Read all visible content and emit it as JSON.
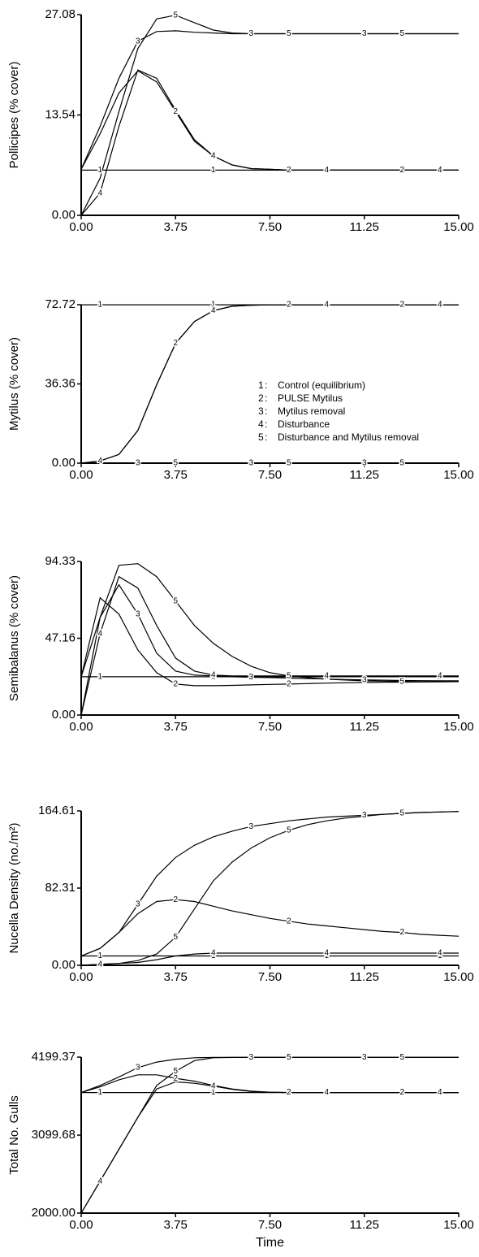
{
  "chart_data": [
    {
      "type": "line",
      "y_label": "Pollicipes (% cover)",
      "x": [
        0,
        0.75,
        1.5,
        2.25,
        3,
        3.75,
        4.5,
        5.25,
        6,
        6.75,
        7.5,
        8.25,
        9,
        9.75,
        10.5,
        11.25,
        12,
        12.75,
        13.5,
        14.25,
        15
      ],
      "xlim": [
        0,
        15
      ],
      "xticks": [
        {
          "value": 0,
          "label": "0.00"
        },
        {
          "value": 3.75,
          "label": "3.75"
        },
        {
          "value": 7.5,
          "label": "7.50"
        },
        {
          "value": 11.25,
          "label": "11.25"
        },
        {
          "value": 15,
          "label": "15.00"
        }
      ],
      "ylim": [
        0,
        27.08
      ],
      "yticks": [
        {
          "value": 0,
          "label": "0.00"
        },
        {
          "value": 13.54,
          "label": "13.54"
        },
        {
          "value": 27.08,
          "label": "27.08"
        }
      ],
      "series": [
        {
          "key": "1",
          "color": "#000000",
          "values": [
            6.1,
            6.1,
            6.1,
            6.1,
            6.1,
            6.1,
            6.1,
            6.1,
            6.1,
            6.1,
            6.1,
            6.1,
            6.1,
            6.1,
            6.1,
            6.1,
            6.1,
            6.1,
            6.1,
            6.1,
            6.1
          ]
        },
        {
          "key": "2",
          "color": "#000000",
          "values": [
            6.2,
            11,
            16.5,
            19.5,
            18,
            14,
            10,
            8,
            6.8,
            6.3,
            6.2,
            6.1,
            6.1,
            6.1,
            6.1,
            6.1,
            6.1,
            6.1,
            6.1,
            6.1,
            6.1
          ]
        },
        {
          "key": "3",
          "color": "#000000",
          "values": [
            6.2,
            12,
            18.5,
            23.5,
            24.8,
            24.9,
            24.7,
            24.6,
            24.5,
            24.5,
            24.5,
            24.5,
            24.5,
            24.5,
            24.5,
            24.5,
            24.5,
            24.5,
            24.5,
            24.5,
            24.5
          ]
        },
        {
          "key": "4",
          "color": "#000000",
          "values": [
            0,
            3,
            12,
            19.6,
            18.5,
            14.2,
            10.2,
            8,
            6.8,
            6.3,
            6.2,
            6.1,
            6.1,
            6.1,
            6.1,
            6.1,
            6.1,
            6.1,
            6.1,
            6.1,
            6.1
          ]
        },
        {
          "key": "5",
          "color": "#000000",
          "values": [
            0,
            5,
            14,
            22.5,
            26.5,
            27,
            26,
            25,
            24.6,
            24.5,
            24.5,
            24.5,
            24.5,
            24.5,
            24.5,
            24.5,
            24.5,
            24.5,
            24.5,
            24.5,
            24.5
          ]
        }
      ]
    },
    {
      "type": "line",
      "y_label": "Mytilus (% cover)",
      "x": [
        0,
        0.75,
        1.5,
        2.25,
        3,
        3.75,
        4.5,
        5.25,
        6,
        6.75,
        7.5,
        8.25,
        9,
        9.75,
        10.5,
        11.25,
        12,
        12.75,
        13.5,
        14.25,
        15
      ],
      "xlim": [
        0,
        15
      ],
      "xticks": [
        {
          "value": 0,
          "label": "0.00"
        },
        {
          "value": 3.75,
          "label": "3.75"
        },
        {
          "value": 7.5,
          "label": "7.50"
        },
        {
          "value": 11.25,
          "label": "11.25"
        },
        {
          "value": 15,
          "label": "15.00"
        }
      ],
      "ylim": [
        0,
        72.72
      ],
      "yticks": [
        {
          "value": 0,
          "label": "0.00"
        },
        {
          "value": 36.36,
          "label": "36.36"
        },
        {
          "value": 72.72,
          "label": "72.72"
        }
      ],
      "legend": [
        {
          "key": "1",
          "name": "Control (equilibrium)"
        },
        {
          "key": "2",
          "name": "PULSE Mytilus"
        },
        {
          "key": "3",
          "name": "Mytilus removal"
        },
        {
          "key": "4",
          "name": "Disturbance"
        },
        {
          "key": "5",
          "name": "Disturbance and Mytilus removal"
        }
      ],
      "series": [
        {
          "key": "1",
          "color": "#000000",
          "values": [
            72.7,
            72.7,
            72.7,
            72.7,
            72.7,
            72.7,
            72.7,
            72.7,
            72.7,
            72.7,
            72.7,
            72.7,
            72.7,
            72.7,
            72.7,
            72.7,
            72.7,
            72.7,
            72.7,
            72.7,
            72.7
          ]
        },
        {
          "key": "2",
          "color": "#000000",
          "values": [
            0,
            1,
            4,
            15,
            36,
            55,
            65,
            70,
            72,
            72.5,
            72.7,
            72.7,
            72.7,
            72.7,
            72.7,
            72.7,
            72.7,
            72.7,
            72.7,
            72.7,
            72.7
          ]
        },
        {
          "key": "3",
          "color": "#000000",
          "values": [
            0,
            0,
            0,
            0,
            0,
            0,
            0,
            0,
            0,
            0,
            0,
            0,
            0,
            0,
            0,
            0,
            0,
            0,
            0,
            0,
            0
          ]
        },
        {
          "key": "4",
          "color": "#000000",
          "values": [
            0,
            1,
            4,
            15,
            36,
            55,
            65,
            70,
            72,
            72.5,
            72.7,
            72.7,
            72.7,
            72.7,
            72.7,
            72.7,
            72.7,
            72.7,
            72.7,
            72.7,
            72.7
          ]
        },
        {
          "key": "5",
          "color": "#000000",
          "values": [
            0,
            0,
            0,
            0,
            0,
            0,
            0,
            0,
            0,
            0,
            0,
            0,
            0,
            0,
            0,
            0,
            0,
            0,
            0,
            0,
            0
          ]
        }
      ]
    },
    {
      "type": "line",
      "y_label": "Semibalanus (% cover)",
      "x": [
        0,
        0.75,
        1.5,
        2.25,
        3,
        3.75,
        4.5,
        5.25,
        6,
        6.75,
        7.5,
        8.25,
        9,
        9.75,
        10.5,
        11.25,
        12,
        12.75,
        13.5,
        14.25,
        15
      ],
      "xlim": [
        0,
        15
      ],
      "xticks": [
        {
          "value": 0,
          "label": "0.00"
        },
        {
          "value": 3.75,
          "label": "3.75"
        },
        {
          "value": 7.5,
          "label": "7.50"
        },
        {
          "value": 11.25,
          "label": "11.25"
        },
        {
          "value": 15,
          "label": "15.00"
        }
      ],
      "ylim": [
        0,
        94.33
      ],
      "yticks": [
        {
          "value": 0,
          "label": "0.00"
        },
        {
          "value": 47.16,
          "label": "47.16"
        },
        {
          "value": 94.33,
          "label": "94.33"
        }
      ],
      "series": [
        {
          "key": "1",
          "color": "#000000",
          "values": [
            23.5,
            23.5,
            23.5,
            23.5,
            23.5,
            23.5,
            23.5,
            23.5,
            23.5,
            23.5,
            23.5,
            23.5,
            23.5,
            23.5,
            23.5,
            23.5,
            23.5,
            23.5,
            23.5,
            23.5,
            23.5
          ]
        },
        {
          "key": "2",
          "color": "#000000",
          "values": [
            23.5,
            72,
            62,
            40,
            26,
            19,
            18,
            18,
            18.2,
            18.5,
            18.8,
            19,
            19.3,
            19.6,
            19.8,
            20,
            20.1,
            20.2,
            20.3,
            20.4,
            20.5
          ]
        },
        {
          "key": "3",
          "color": "#000000",
          "values": [
            23.5,
            60,
            80,
            62,
            38,
            27,
            24.5,
            24,
            23.5,
            23.2,
            23,
            22.7,
            22.4,
            22.1,
            21.8,
            21.6,
            21.4,
            21.2,
            21.1,
            21,
            21
          ]
        },
        {
          "key": "4",
          "color": "#000000",
          "values": [
            0,
            50,
            85,
            78,
            55,
            35,
            27,
            24.5,
            24,
            24,
            24,
            24,
            24,
            24,
            24,
            24,
            24,
            24,
            24,
            24,
            24
          ]
        },
        {
          "key": "5",
          "color": "#000000",
          "values": [
            0,
            60,
            92,
            93,
            85,
            70,
            55,
            44,
            36,
            30,
            26,
            24,
            23,
            22,
            21.5,
            21,
            20.8,
            20.6,
            20.5,
            20.5,
            20.5
          ]
        }
      ]
    },
    {
      "type": "line",
      "y_label": "Nucella Density (no./m²)",
      "x": [
        0,
        0.75,
        1.5,
        2.25,
        3,
        3.75,
        4.5,
        5.25,
        6,
        6.75,
        7.5,
        8.25,
        9,
        9.75,
        10.5,
        11.25,
        12,
        12.75,
        13.5,
        14.25,
        15
      ],
      "xlim": [
        0,
        15
      ],
      "xticks": [
        {
          "value": 0,
          "label": "0.00"
        },
        {
          "value": 3.75,
          "label": "3.75"
        },
        {
          "value": 7.5,
          "label": "7.50"
        },
        {
          "value": 11.25,
          "label": "11.25"
        },
        {
          "value": 15,
          "label": "15.00"
        }
      ],
      "ylim": [
        0,
        164.61
      ],
      "yticks": [
        {
          "value": 0,
          "label": "0.00"
        },
        {
          "value": 82.31,
          "label": "82.31"
        },
        {
          "value": 164.61,
          "label": "164.61"
        }
      ],
      "series": [
        {
          "key": "1",
          "color": "#000000",
          "values": [
            10,
            10,
            10,
            10,
            10,
            10,
            10,
            10,
            10,
            10,
            10,
            10,
            10,
            10,
            10,
            10,
            10,
            10,
            10,
            10,
            10
          ]
        },
        {
          "key": "2",
          "color": "#000000",
          "values": [
            10,
            18,
            35,
            55,
            68,
            70,
            68,
            63,
            58,
            54,
            50,
            47,
            44,
            42,
            40,
            38,
            36,
            35,
            33,
            32,
            31
          ]
        },
        {
          "key": "3",
          "color": "#000000",
          "values": [
            10,
            18,
            35,
            65,
            95,
            115,
            128,
            137,
            143,
            148,
            151,
            154,
            156,
            158,
            159,
            160,
            161,
            162,
            163,
            163.5,
            164
          ]
        },
        {
          "key": "4",
          "color": "#000000",
          "values": [
            0,
            1,
            2,
            3,
            6,
            10,
            12,
            13,
            13,
            13,
            13,
            13,
            13,
            13,
            13,
            13,
            13,
            13,
            13,
            13,
            13
          ]
        },
        {
          "key": "5",
          "color": "#000000",
          "values": [
            0,
            1,
            2,
            5,
            12,
            30,
            60,
            90,
            110,
            125,
            136,
            144,
            150,
            154,
            157,
            159,
            161,
            162,
            163,
            163.5,
            164
          ]
        }
      ]
    },
    {
      "type": "line",
      "y_label": "Total No. Gulls",
      "x_label": "Time",
      "x": [
        0,
        0.75,
        1.5,
        2.25,
        3,
        3.75,
        4.5,
        5.25,
        6,
        6.75,
        7.5,
        8.25,
        9,
        9.75,
        10.5,
        11.25,
        12,
        12.75,
        13.5,
        14.25,
        15
      ],
      "xlim": [
        0,
        15
      ],
      "xticks": [
        {
          "value": 0,
          "label": "0.00"
        },
        {
          "value": 3.75,
          "label": "3.75"
        },
        {
          "value": 7.5,
          "label": "7.50"
        },
        {
          "value": 11.25,
          "label": "11.25"
        },
        {
          "value": 15,
          "label": "15.00"
        }
      ],
      "ylim": [
        2000,
        4199.37
      ],
      "yticks": [
        {
          "value": 2000,
          "label": "2000.00"
        },
        {
          "value": 3099.68,
          "label": "3099.68"
        },
        {
          "value": 4199.37,
          "label": "4199.37"
        }
      ],
      "series": [
        {
          "key": "1",
          "color": "#000000",
          "values": [
            3700,
            3700,
            3700,
            3700,
            3700,
            3700,
            3700,
            3700,
            3700,
            3700,
            3700,
            3700,
            3700,
            3700,
            3700,
            3700,
            3700,
            3700,
            3700,
            3700,
            3700
          ]
        },
        {
          "key": "2",
          "color": "#000000",
          "values": [
            3700,
            3780,
            3880,
            3950,
            3950,
            3900,
            3860,
            3800,
            3750,
            3720,
            3705,
            3700,
            3700,
            3700,
            3700,
            3700,
            3700,
            3700,
            3700,
            3700,
            3700
          ]
        },
        {
          "key": "3",
          "color": "#000000",
          "values": [
            3700,
            3800,
            3920,
            4050,
            4130,
            4170,
            4190,
            4195,
            4195,
            4195,
            4195,
            4195,
            4195,
            4195,
            4195,
            4195,
            4195,
            4195,
            4195,
            4195,
            4195
          ]
        },
        {
          "key": "4",
          "color": "#000000",
          "values": [
            2000,
            2450,
            2900,
            3350,
            3750,
            3850,
            3830,
            3790,
            3745,
            3715,
            3705,
            3700,
            3700,
            3700,
            3700,
            3700,
            3700,
            3700,
            3700,
            3700,
            3700
          ]
        },
        {
          "key": "5",
          "color": "#000000",
          "values": [
            2000,
            2450,
            2900,
            3350,
            3800,
            4000,
            4150,
            4190,
            4195,
            4197,
            4197,
            4197,
            4197,
            4197,
            4197,
            4197,
            4197,
            4197,
            4197,
            4197,
            4197
          ]
        }
      ]
    }
  ]
}
